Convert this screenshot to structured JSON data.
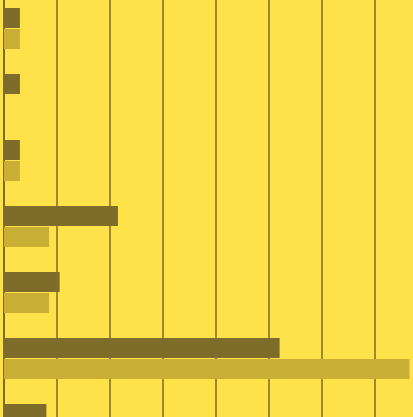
{
  "colors": {
    "background": "#FFE14A",
    "grid": "#7D6C2A",
    "series_dark": "#7D6C2A",
    "series_light": "#C9AE35"
  },
  "chart_data": {
    "type": "bar",
    "orientation": "horizontal",
    "title": "",
    "xlabel": "",
    "ylabel": "",
    "grid": "vertical lines",
    "legend": "none",
    "xlim": [
      0,
      7.6
    ],
    "categories": [
      "",
      "",
      "",
      "",
      "",
      "",
      ""
    ],
    "series": [
      {
        "color": "#7D6C2A",
        "values": [
          0.3,
          0.3,
          0.3,
          2.15,
          1.05,
          5.2,
          0.8
        ]
      },
      {
        "color": "#C9AE35",
        "values": [
          0.3,
          0,
          0.3,
          0.85,
          0.85,
          7.65,
          null
        ]
      }
    ]
  }
}
